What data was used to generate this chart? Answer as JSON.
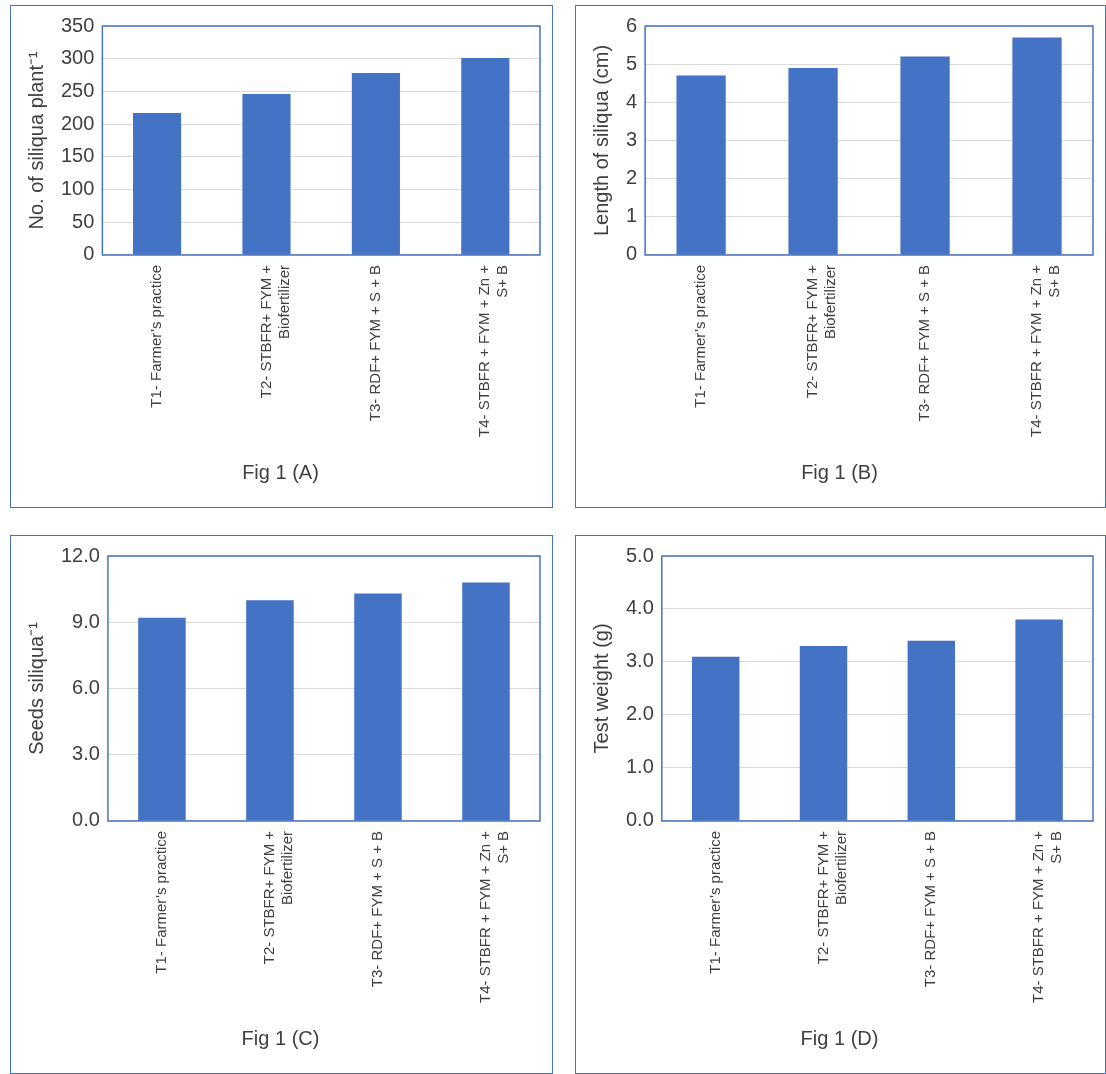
{
  "chart_data": [
    {
      "type": "bar",
      "title": "Fig 1 (A)",
      "ylabel": "No. of siliqua plant⁻¹",
      "categories": [
        "T1- Farmer’s practice",
        "T2- STBFR+ FYM + Biofertilizer",
        "T3- RDF+ FYM + S + B",
        "T4- STBFR + FYM + Zn + S+ B"
      ],
      "values": [
        217,
        246,
        278,
        301
      ],
      "color": "#4472c4",
      "ylim": [
        0,
        350
      ],
      "yticks": [
        0,
        50,
        100,
        150,
        200,
        250,
        300,
        350
      ],
      "grid": "y",
      "legend": false
    },
    {
      "type": "bar",
      "title": "Fig 1 (B)",
      "ylabel": "Length of siliqua (cm)",
      "categories": [
        "T1- Farmer’s practice",
        "T2- STBFR+ FYM + Biofertilizer",
        "T3- RDF+ FYM + S + B",
        "T4- STBFR + FYM + Zn + S+ B"
      ],
      "values": [
        4.7,
        4.9,
        5.2,
        5.7
      ],
      "color": "#4472c4",
      "ylim": [
        0,
        6
      ],
      "yticks": [
        0,
        1,
        2,
        3,
        4,
        5,
        6
      ],
      "grid": "y",
      "legend": false
    },
    {
      "type": "bar",
      "title": "Fig 1 (C)",
      "ylabel": "Seeds siliqua⁻¹",
      "categories": [
        "T1- Farmer’s practice",
        "T2- STBFR+ FYM + Biofertilizer",
        "T3- RDF+ FYM + S + B",
        "T4- STBFR + FYM + Zn + S+ B"
      ],
      "values": [
        9.2,
        10.0,
        10.3,
        10.8
      ],
      "color": "#4472c4",
      "ylim": [
        0,
        12
      ],
      "yticks": [
        {
          "value": 0,
          "label": "0.0"
        },
        {
          "value": 3,
          "label": "3.0"
        },
        {
          "value": 6,
          "label": "6.0"
        },
        {
          "value": 9,
          "label": "9.0"
        },
        {
          "value": 12,
          "label": "12.0"
        }
      ],
      "grid": "y",
      "legend": false
    },
    {
      "type": "bar",
      "title": "Fig 1 (D)",
      "ylabel": "Test weight (g)",
      "categories": [
        "T1- Farmer’s practice",
        "T2- STBFR+ FYM + Biofertilizer",
        "T3- RDF+ FYM + S + B",
        "T4- STBFR + FYM + Zn + S+ B"
      ],
      "values": [
        3.1,
        3.3,
        3.4,
        3.8
      ],
      "color": "#4472c4",
      "ylim": [
        0,
        5
      ],
      "yticks": [
        {
          "value": 0,
          "label": "0.0"
        },
        {
          "value": 1,
          "label": "1.0"
        },
        {
          "value": 2,
          "label": "2.0"
        },
        {
          "value": 3,
          "label": "3.0"
        },
        {
          "value": 4,
          "label": "4.0"
        },
        {
          "value": 5,
          "label": "5.0"
        }
      ],
      "grid": "y",
      "legend": false
    }
  ]
}
